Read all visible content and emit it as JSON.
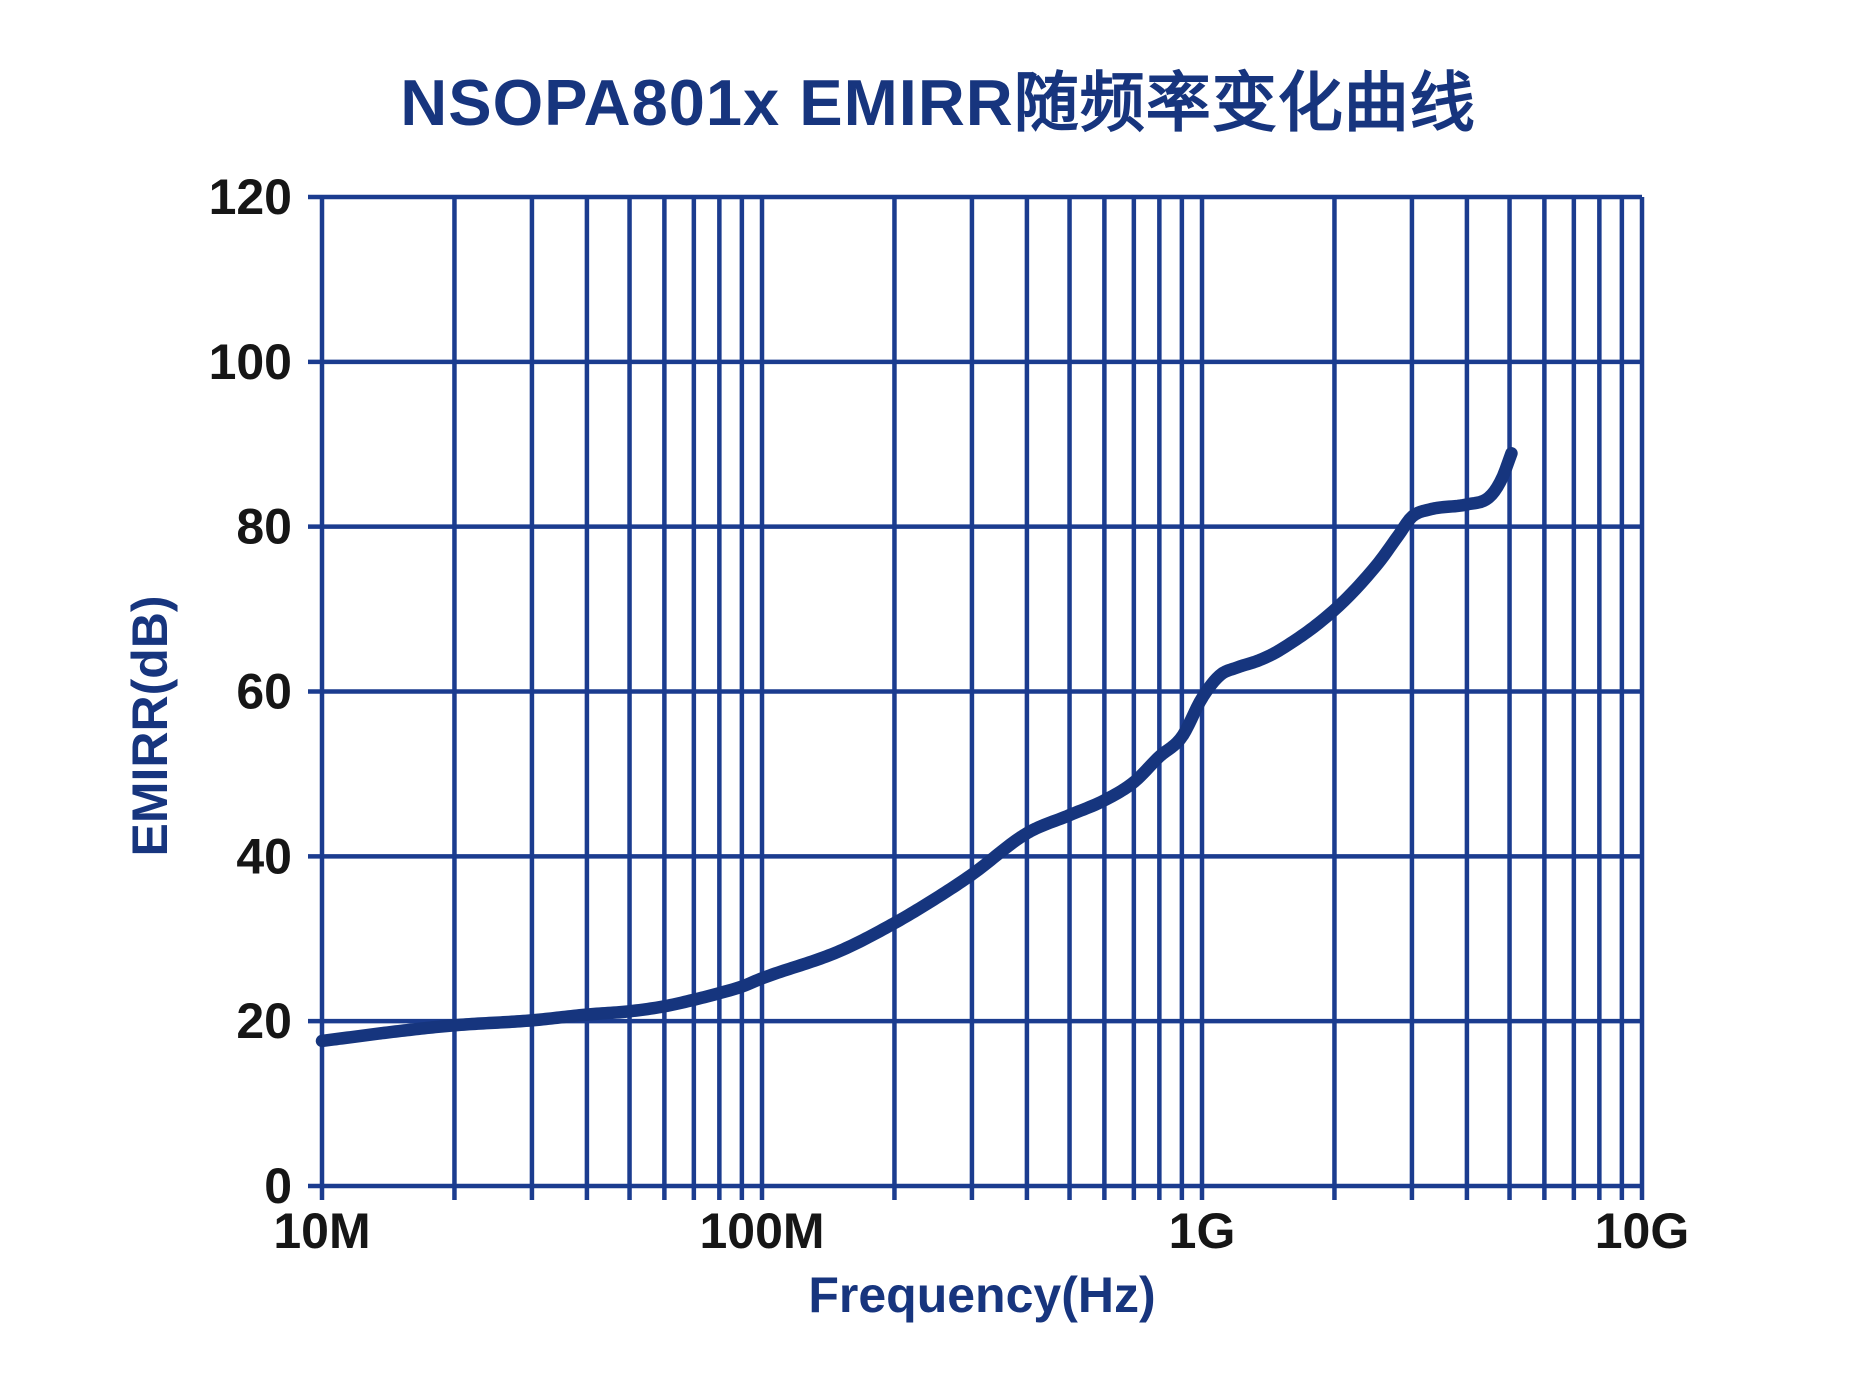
{
  "title": "NSOPA801x EMIRR随频率变化曲线",
  "x_axis": {
    "label": "Frequency(Hz)",
    "scale": "log",
    "min_hz": 10000000,
    "max_hz": 10000000000,
    "ticks": [
      {
        "label": "10M",
        "hz": 10000000
      },
      {
        "label": "100M",
        "hz": 100000000
      },
      {
        "label": "1G",
        "hz": 1000000000
      },
      {
        "label": "10G",
        "hz": 10000000000
      }
    ],
    "minor_multiples": [
      2,
      3,
      4,
      5,
      6,
      7,
      8,
      9
    ]
  },
  "y_axis": {
    "label": "EMIRR(dB)",
    "min": 0,
    "max": 120,
    "step": 20,
    "ticks": [
      {
        "label": "0",
        "value": 0
      },
      {
        "label": "20",
        "value": 20
      },
      {
        "label": "40",
        "value": 40
      },
      {
        "label": "60",
        "value": 60
      },
      {
        "label": "80",
        "value": 80
      },
      {
        "label": "100",
        "value": 100
      },
      {
        "label": "120",
        "value": 120
      }
    ]
  },
  "colors": {
    "title_text": "#17357E",
    "axis_label_text": "#17357E",
    "tick_label_text": "#161616",
    "grid": "#1B3C8F",
    "curve": "#16357E",
    "background": "#FFFFFF"
  },
  "chart_data": {
    "type": "line",
    "title": "NSOPA801x EMIRR随频率变化曲线",
    "xlabel": "Frequency(Hz)",
    "ylabel": "EMIRR(dB)",
    "x_scale": "log",
    "xlim_hz": [
      10000000,
      10000000000
    ],
    "ylim": [
      0,
      120
    ],
    "grid": true,
    "legend": "none",
    "series": [
      {
        "name": "EMIRR",
        "points_hz_db": [
          [
            10000000,
            17.6
          ],
          [
            15000000,
            18.8
          ],
          [
            20000000,
            19.5
          ],
          [
            30000000,
            20.1
          ],
          [
            40000000,
            20.8
          ],
          [
            50000000,
            21.2
          ],
          [
            60000000,
            21.8
          ],
          [
            70000000,
            22.6
          ],
          [
            80000000,
            23.4
          ],
          [
            90000000,
            24.2
          ],
          [
            100000000,
            25.2
          ],
          [
            150000000,
            28.5
          ],
          [
            200000000,
            31.9
          ],
          [
            250000000,
            35.0
          ],
          [
            300000000,
            37.8
          ],
          [
            400000000,
            42.8
          ],
          [
            500000000,
            45.0
          ],
          [
            600000000,
            46.8
          ],
          [
            700000000,
            49.0
          ],
          [
            800000000,
            52.1
          ],
          [
            900000000,
            54.5
          ],
          [
            1000000000,
            59.2
          ],
          [
            1100000000,
            62.0
          ],
          [
            1200000000,
            62.9
          ],
          [
            1350000000,
            63.8
          ],
          [
            1500000000,
            65.0
          ],
          [
            2000000000,
            69.9
          ],
          [
            2500000000,
            75.4
          ],
          [
            2800000000,
            79.0
          ],
          [
            3000000000,
            81.2
          ],
          [
            3300000000,
            82.1
          ],
          [
            4000000000,
            82.7
          ],
          [
            4500000000,
            83.6
          ],
          [
            4800000000,
            85.8
          ],
          [
            5050000000,
            88.9
          ]
        ]
      }
    ]
  }
}
